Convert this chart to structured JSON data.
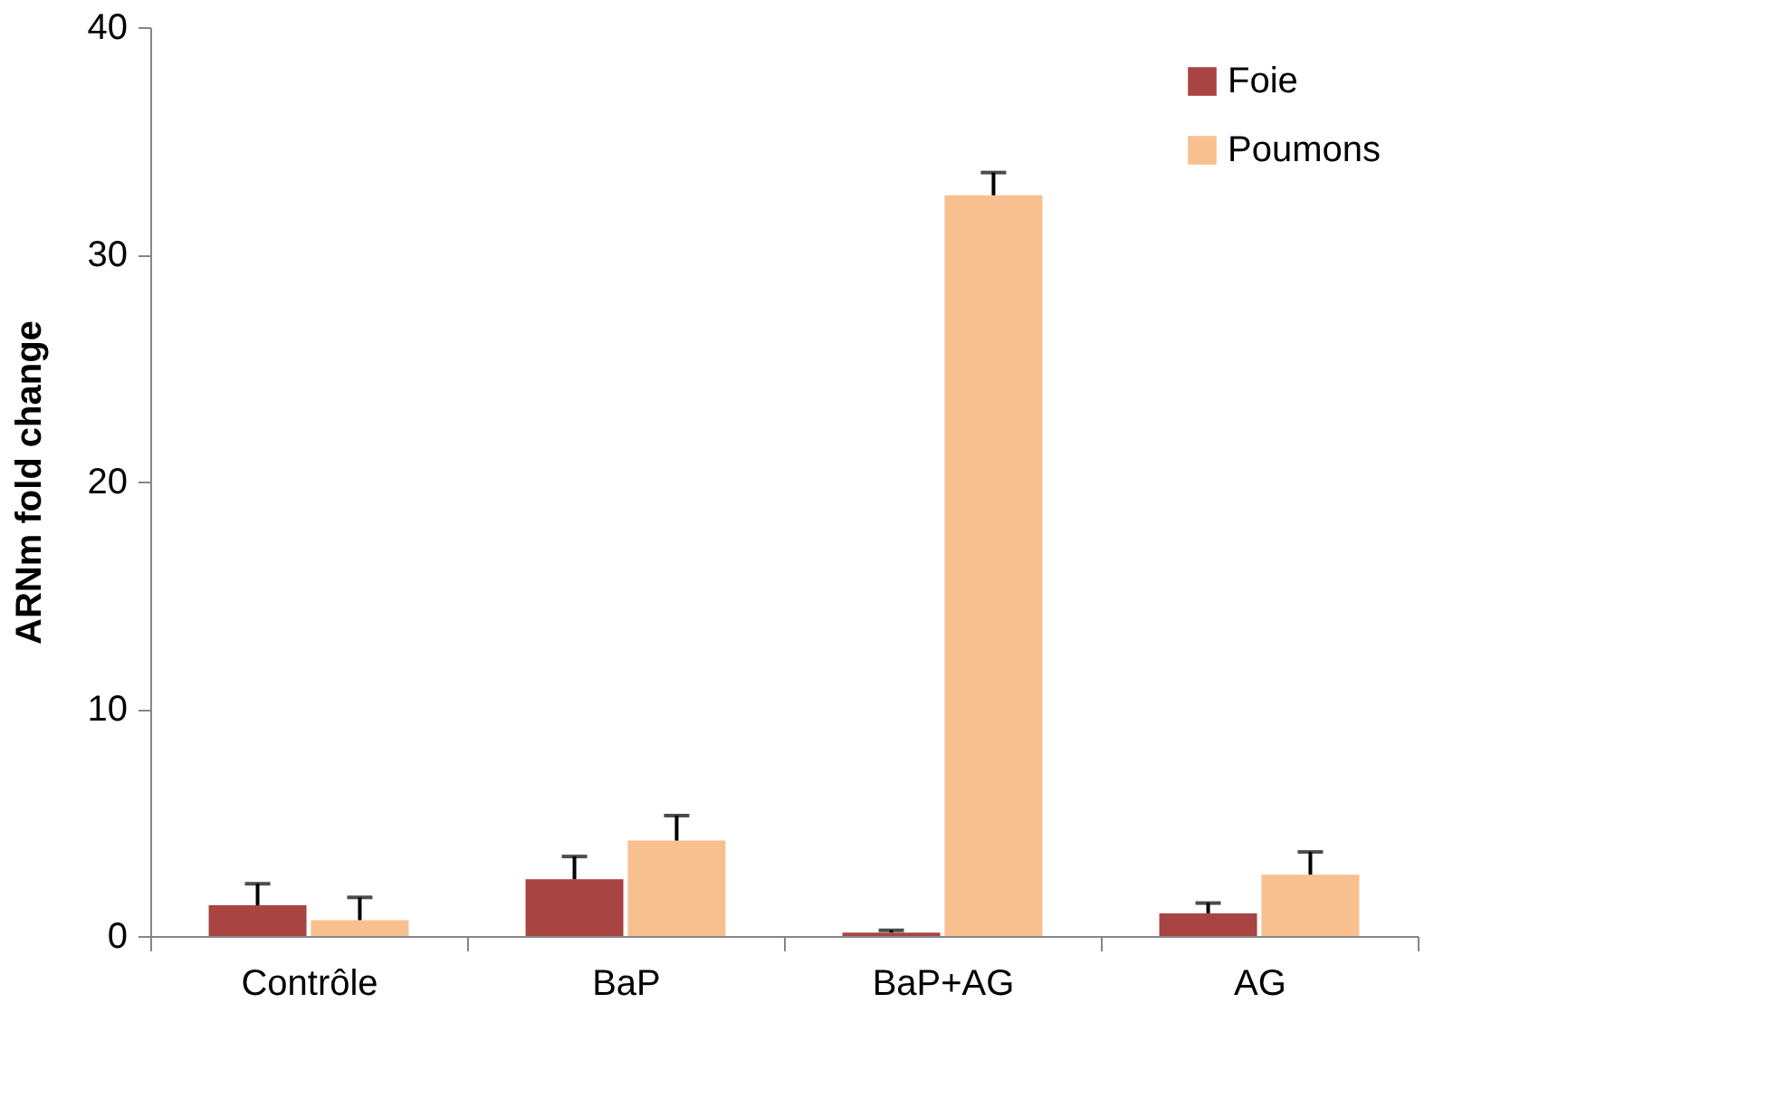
{
  "chart_data": {
    "type": "bar",
    "ylabel": "ARNm  fold change",
    "categories": [
      "Contrôle",
      "BaP",
      "BaP+AG",
      "AG"
    ],
    "series": [
      {
        "name": "Foie",
        "color": "#a84543",
        "values": [
          1.35,
          2.5,
          0.15,
          1.0
        ],
        "errors": [
          [
            1.35,
            2.3
          ],
          [
            2.5,
            3.5
          ],
          [
            0.15,
            0.25
          ],
          [
            1.0,
            1.45
          ]
        ]
      },
      {
        "name": "Poumons",
        "color": "#f9c08f",
        "values": [
          0.7,
          4.2,
          32.6,
          2.7
        ],
        "errors": [
          [
            0.7,
            1.7
          ],
          [
            4.2,
            5.3
          ],
          [
            32.6,
            33.6
          ],
          [
            2.7,
            3.7
          ]
        ]
      }
    ],
    "ylim": [
      0,
      40
    ],
    "yticks": [
      0,
      10,
      20,
      30,
      40
    ],
    "grid": false,
    "legend": "top right"
  }
}
